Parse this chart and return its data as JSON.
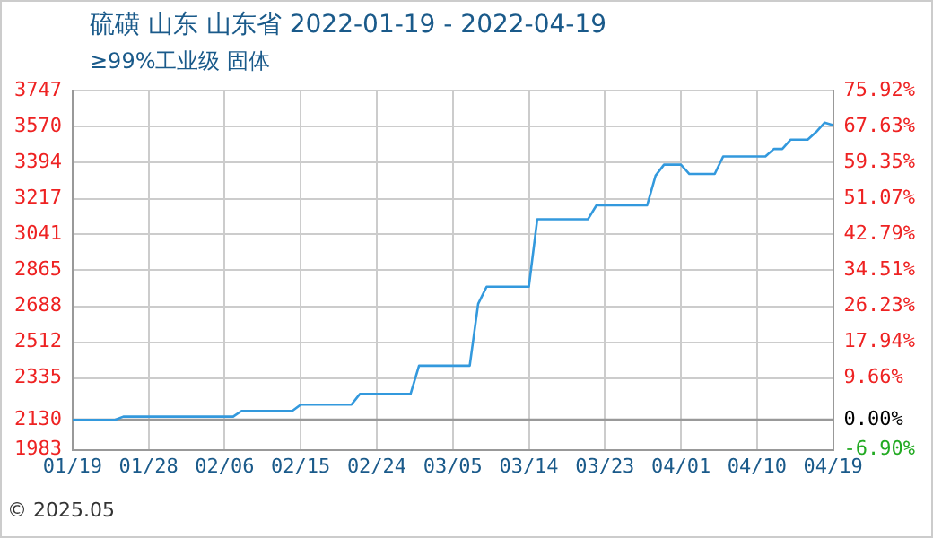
{
  "chart_data": {
    "type": "line",
    "title": "硫磺 山东 山东省 2022-01-19 - 2022-04-19",
    "subtitle": "≥99%工业级 固体",
    "x": [
      "2022-01-19",
      "2022-01-24",
      "2022-01-25",
      "2022-02-07",
      "2022-02-08",
      "2022-02-14",
      "2022-02-15",
      "2022-02-21",
      "2022-02-22",
      "2022-02-28",
      "2022-03-01",
      "2022-03-07",
      "2022-03-08",
      "2022-03-09",
      "2022-03-14",
      "2022-03-15",
      "2022-03-21",
      "2022-03-22",
      "2022-03-28",
      "2022-03-29",
      "2022-03-30",
      "2022-04-01",
      "2022-04-02",
      "2022-04-05",
      "2022-04-06",
      "2022-04-11",
      "2022-04-12",
      "2022-04-13",
      "2022-04-14",
      "2022-04-16",
      "2022-04-17",
      "2022-04-18",
      "2022-04-19"
    ],
    "series": [
      {
        "color": "#3399dd",
        "values": [
          2130,
          2130,
          2146,
          2146,
          2174,
          2174,
          2205,
          2205,
          2257,
          2257,
          2396,
          2396,
          2700,
          2784,
          2784,
          3116,
          3116,
          3184,
          3184,
          3330,
          3384,
          3384,
          3338,
          3338,
          3424,
          3424,
          3461,
          3461,
          3507,
          3507,
          3544,
          3590,
          3578
        ]
      }
    ],
    "xlim": [
      "2022-01-19",
      "2022-04-19"
    ],
    "xticks": [
      {
        "value": "2022-01-19",
        "label": "01/19"
      },
      {
        "value": "2022-01-28",
        "label": "01/28"
      },
      {
        "value": "2022-02-06",
        "label": "02/06"
      },
      {
        "value": "2022-02-15",
        "label": "02/15"
      },
      {
        "value": "2022-02-24",
        "label": "02/24"
      },
      {
        "value": "2022-03-05",
        "label": "03/05"
      },
      {
        "value": "2022-03-14",
        "label": "03/14"
      },
      {
        "value": "2022-03-23",
        "label": "03/23"
      },
      {
        "value": "2022-04-01",
        "label": "04/01"
      },
      {
        "value": "2022-04-10",
        "label": "04/10"
      },
      {
        "value": "2022-04-19",
        "label": "04/19"
      }
    ],
    "ylim": [
      1983,
      3747
    ],
    "yticks": [
      1983,
      2130,
      2335,
      2512,
      2688,
      2865,
      3041,
      3217,
      3394,
      3570,
      3747
    ],
    "y2lim": [
      -6.9,
      75.92
    ],
    "y2ticks": [
      {
        "value": -6.9,
        "label": "-6.90%"
      },
      {
        "value": 0,
        "label": "0.00%"
      },
      {
        "value": 9.66,
        "label": "9.66%"
      },
      {
        "value": 17.94,
        "label": "17.94%"
      },
      {
        "value": 26.23,
        "label": "26.23%"
      },
      {
        "value": 34.51,
        "label": "34.51%"
      },
      {
        "value": 42.79,
        "label": "42.79%"
      },
      {
        "value": 51.07,
        "label": "51.07%"
      },
      {
        "value": 59.35,
        "label": "59.35%"
      },
      {
        "value": 67.63,
        "label": "67.63%"
      },
      {
        "value": 75.92,
        "label": "75.92%"
      }
    ],
    "ref_lines": [
      {
        "axis": "y",
        "value": 2130,
        "color": "#999999"
      }
    ],
    "grid": true,
    "line_style": "solid",
    "marker": "none",
    "legend": false,
    "annotations": [
      "© 2025.05"
    ]
  }
}
